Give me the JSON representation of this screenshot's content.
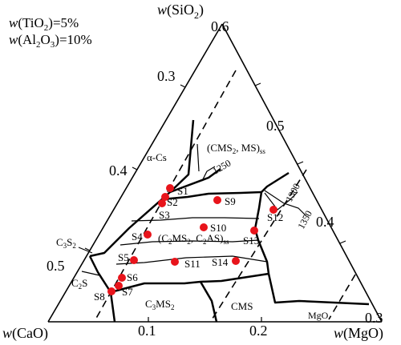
{
  "header": {
    "condition_1": "w(TiO2)=5%",
    "condition_2": "w(Al2O3)=10%"
  },
  "vertices": {
    "top": "w(SiO2)",
    "left": "w(CaO)",
    "right": "w(MgO)"
  },
  "left_edge_ticks": [
    "0.3",
    "0.4",
    "0.5"
  ],
  "right_edge_ticks": [
    "0.6",
    "0.5",
    "0.4",
    "0.3"
  ],
  "bottom_edge_ticks": [
    "0.1",
    "0.2"
  ],
  "phase_fields": {
    "alpha_cs": "α-Cs",
    "cms2_ms": "(CMS2, MS)ss",
    "c2ms2_c2as": "(C2MS2, C2AS)ss",
    "c3s2": "C3S2",
    "c2s": "C2S",
    "c3ms2": "C3MS2",
    "cms": "CMS",
    "mgo": "MgO"
  },
  "isotherms": [
    "1250",
    "1300",
    "1350"
  ],
  "samples": [
    "S1",
    "S2",
    "S3",
    "S4",
    "S5",
    "S6",
    "S7",
    "S8",
    "S9",
    "S10",
    "S11",
    "S12",
    "S13",
    "S14"
  ],
  "colors": {
    "sample_marker": "#e8141b",
    "line": "#000000"
  }
}
